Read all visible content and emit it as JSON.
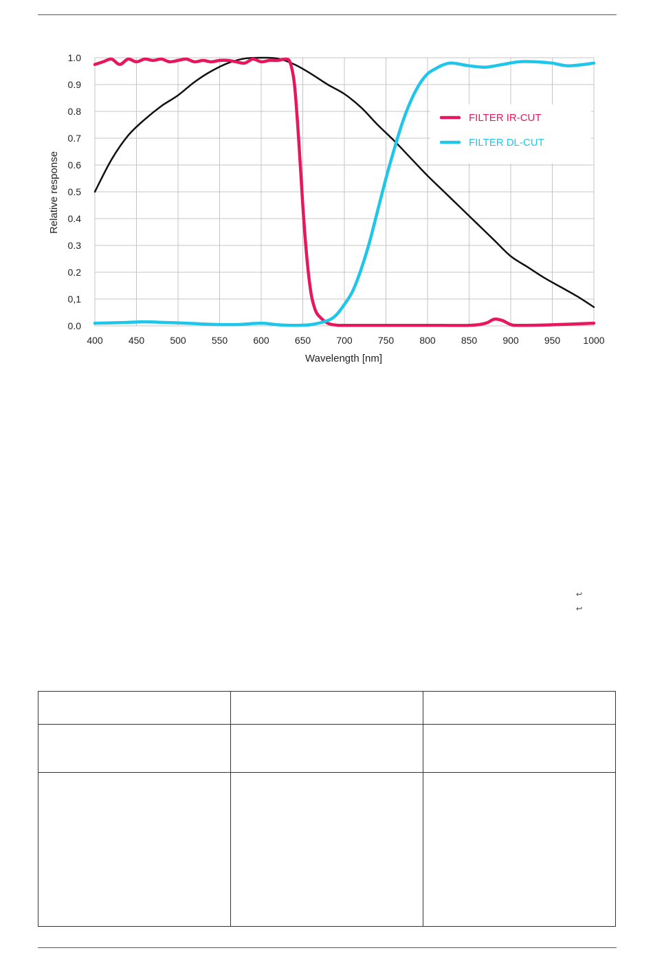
{
  "page": {
    "return_marks": [
      "↩",
      "↩"
    ]
  },
  "chart_data": {
    "type": "line",
    "title": "",
    "xlabel": "Wavelength [nm]",
    "ylabel": "Relative response",
    "xlim": [
      400,
      1000
    ],
    "ylim": [
      0.0,
      1.0
    ],
    "xticks": [
      400,
      450,
      500,
      550,
      600,
      650,
      700,
      750,
      800,
      850,
      900,
      950,
      1000
    ],
    "yticks": [
      "0.0",
      "0,1",
      "0.2",
      "0.3",
      "0.4",
      "0.5",
      "0.6",
      "0.7",
      "0.8",
      "0.9",
      "1.0"
    ],
    "grid": true,
    "legend_position": "upper-right",
    "series": [
      {
        "name": "",
        "color": "#111111",
        "x": [
          400,
          420,
          440,
          460,
          480,
          500,
          520,
          540,
          560,
          580,
          600,
          620,
          640,
          660,
          680,
          700,
          720,
          740,
          760,
          780,
          800,
          820,
          840,
          860,
          880,
          900,
          920,
          940,
          960,
          980,
          1000
        ],
        "y": [
          0.5,
          0.62,
          0.71,
          0.77,
          0.82,
          0.86,
          0.91,
          0.95,
          0.98,
          0.997,
          1.0,
          0.997,
          0.975,
          0.94,
          0.9,
          0.865,
          0.815,
          0.75,
          0.69,
          0.625,
          0.56,
          0.5,
          0.44,
          0.38,
          0.32,
          0.26,
          0.22,
          0.18,
          0.145,
          0.11,
          0.07
        ]
      },
      {
        "name": "FILTER IR-CUT",
        "color": "#e6175c",
        "x": [
          400,
          410,
          420,
          430,
          440,
          450,
          460,
          470,
          480,
          490,
          500,
          510,
          520,
          530,
          540,
          550,
          560,
          570,
          580,
          590,
          600,
          610,
          620,
          630,
          635,
          640,
          645,
          650,
          655,
          660,
          665,
          670,
          680,
          690,
          700,
          750,
          800,
          850,
          870,
          880,
          890,
          900,
          910,
          950,
          1000
        ],
        "y": [
          0.975,
          0.985,
          0.995,
          0.975,
          0.995,
          0.985,
          0.995,
          0.99,
          0.995,
          0.985,
          0.99,
          0.995,
          0.985,
          0.99,
          0.985,
          0.99,
          0.99,
          0.985,
          0.98,
          0.995,
          0.985,
          0.99,
          0.99,
          0.995,
          0.98,
          0.9,
          0.7,
          0.45,
          0.25,
          0.12,
          0.06,
          0.035,
          0.01,
          0.003,
          0.002,
          0.002,
          0.002,
          0.002,
          0.01,
          0.025,
          0.02,
          0.005,
          0.002,
          0.004,
          0.01
        ]
      },
      {
        "name": "FILTER DL-CUT",
        "color": "#1fc6ea",
        "x": [
          400,
          430,
          460,
          490,
          510,
          540,
          570,
          600,
          620,
          640,
          660,
          680,
          690,
          700,
          710,
          720,
          730,
          740,
          750,
          760,
          770,
          780,
          790,
          800,
          810,
          820,
          830,
          850,
          870,
          890,
          910,
          930,
          950,
          970,
          1000
        ],
        "y": [
          0.01,
          0.012,
          0.015,
          0.012,
          0.01,
          0.006,
          0.005,
          0.01,
          0.004,
          0.002,
          0.005,
          0.02,
          0.04,
          0.08,
          0.13,
          0.21,
          0.31,
          0.43,
          0.55,
          0.66,
          0.76,
          0.84,
          0.9,
          0.94,
          0.96,
          0.975,
          0.98,
          0.97,
          0.965,
          0.975,
          0.985,
          0.985,
          0.98,
          0.97,
          0.98
        ]
      }
    ]
  }
}
